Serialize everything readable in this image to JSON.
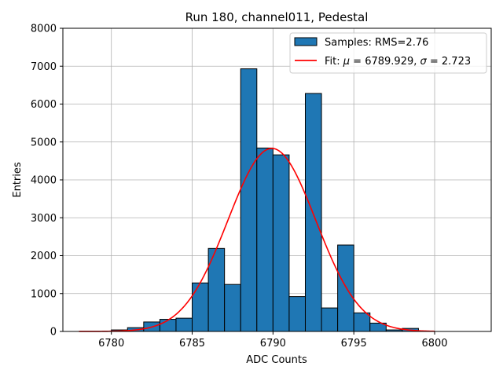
{
  "chart_data": {
    "type": "bar",
    "title": "Run 180, channel011, Pedestal",
    "xlabel": "ADC Counts",
    "ylabel": "Entries",
    "xlim": [
      6777,
      6803.5
    ],
    "ylim": [
      0,
      8000
    ],
    "xticks": [
      6780,
      6785,
      6790,
      6795,
      6800
    ],
    "yticks": [
      0,
      1000,
      2000,
      3000,
      4000,
      5000,
      6000,
      7000,
      8000
    ],
    "grid": true,
    "legend_position": "top-right",
    "colors": {
      "bar_fill": "#1f77b4",
      "bar_edge": "#000000",
      "fit_line": "#ff0000",
      "grid": "#b0b0b0"
    },
    "histogram": {
      "name": "Samples: RMS=2.76",
      "bin_width": 1,
      "bin_left_edges": [
        6780,
        6781,
        6782,
        6783,
        6784,
        6785,
        6786,
        6787,
        6788,
        6789,
        6790,
        6791,
        6792,
        6793,
        6794,
        6795,
        6796,
        6797,
        6798
      ],
      "values": [
        40,
        100,
        250,
        320,
        350,
        1280,
        2190,
        1240,
        6930,
        4840,
        4660,
        920,
        6280,
        620,
        2280,
        490,
        220,
        40,
        80
      ]
    },
    "fit": {
      "name_prefix": "Fit: ",
      "mu_symbol": "μ",
      "mu_text": " = 6789.929, ",
      "sigma_symbol": "σ",
      "sigma_text": " = 2.723",
      "mu": 6789.929,
      "sigma": 2.723,
      "amplitude": 4830,
      "x_range": [
        6778,
        6800
      ]
    }
  }
}
